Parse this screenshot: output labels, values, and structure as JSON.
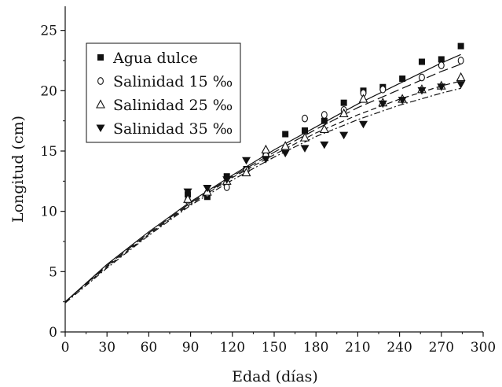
{
  "chart_data": {
    "type": "scatter",
    "title": "",
    "xlabel": "Edad (días)",
    "ylabel": "Longitud (cm)",
    "xlim": [
      0,
      300
    ],
    "ylim": [
      0,
      27
    ],
    "xticks": [
      0,
      30,
      60,
      90,
      120,
      150,
      180,
      210,
      240,
      270,
      300
    ],
    "yticks": [
      0,
      5,
      10,
      15,
      20,
      25
    ],
    "grid": false,
    "legend_position": "top-left",
    "series": [
      {
        "name": "Agua dulce",
        "marker": "filled-square",
        "line_style": "solid",
        "points": [
          [
            88,
            11.4
          ],
          [
            102,
            11.2
          ],
          [
            116,
            12.9
          ],
          [
            130,
            13.5
          ],
          [
            144,
            14.8
          ],
          [
            158,
            16.4
          ],
          [
            172,
            16.7
          ],
          [
            186,
            17.5
          ],
          [
            200,
            19.0
          ],
          [
            214,
            20.0
          ],
          [
            228,
            20.3
          ],
          [
            242,
            21.0
          ],
          [
            256,
            22.4
          ],
          [
            270,
            22.6
          ],
          [
            284,
            23.7
          ]
        ],
        "fit": [
          [
            0,
            2.5
          ],
          [
            30,
            5.6
          ],
          [
            60,
            8.3
          ],
          [
            90,
            10.8
          ],
          [
            120,
            13.0
          ],
          [
            150,
            15.1
          ],
          [
            180,
            17.0
          ],
          [
            210,
            18.9
          ],
          [
            240,
            20.6
          ],
          [
            270,
            22.3
          ],
          [
            284,
            23.0
          ]
        ]
      },
      {
        "name": "Salinidad 15 ‰",
        "marker": "open-circle",
        "line_style": "long-dash",
        "points": [
          [
            88,
            10.9
          ],
          [
            102,
            11.5
          ],
          [
            116,
            12.0
          ],
          [
            130,
            13.4
          ],
          [
            144,
            14.6
          ],
          [
            158,
            15.0
          ],
          [
            172,
            17.7
          ],
          [
            186,
            18.0
          ],
          [
            200,
            18.4
          ],
          [
            214,
            19.8
          ],
          [
            228,
            20.1
          ],
          [
            256,
            21.1
          ],
          [
            270,
            22.1
          ],
          [
            284,
            22.5
          ]
        ],
        "fit": [
          [
            0,
            2.5
          ],
          [
            30,
            5.5
          ],
          [
            60,
            8.2
          ],
          [
            90,
            10.7
          ],
          [
            120,
            12.9
          ],
          [
            150,
            14.9
          ],
          [
            180,
            16.8
          ],
          [
            210,
            18.6
          ],
          [
            240,
            20.1
          ],
          [
            270,
            21.6
          ],
          [
            284,
            22.2
          ]
        ]
      },
      {
        "name": "Salinidad 25 ‰",
        "marker": "open-triangle",
        "line_style": "dash",
        "points": [
          [
            88,
            11.0
          ],
          [
            102,
            11.6
          ],
          [
            116,
            12.5
          ],
          [
            130,
            13.2
          ],
          [
            144,
            15.1
          ],
          [
            158,
            15.4
          ],
          [
            172,
            16.1
          ],
          [
            186,
            16.8
          ],
          [
            200,
            18.1
          ],
          [
            214,
            19.3
          ],
          [
            228,
            19.0
          ],
          [
            242,
            19.3
          ],
          [
            256,
            20.1
          ],
          [
            270,
            20.4
          ],
          [
            284,
            21.1
          ]
        ],
        "fit": [
          [
            0,
            2.5
          ],
          [
            30,
            5.4
          ],
          [
            60,
            8.1
          ],
          [
            90,
            10.6
          ],
          [
            120,
            12.8
          ],
          [
            150,
            14.7
          ],
          [
            180,
            16.5
          ],
          [
            210,
            18.0
          ],
          [
            240,
            19.3
          ],
          [
            270,
            20.4
          ],
          [
            284,
            20.8
          ]
        ]
      },
      {
        "name": "Salinidad 35 ‰",
        "marker": "filled-down-triangle",
        "line_style": "dash-dot",
        "points": [
          [
            88,
            11.6
          ],
          [
            102,
            11.9
          ],
          [
            116,
            12.6
          ],
          [
            130,
            14.2
          ],
          [
            144,
            14.3
          ],
          [
            158,
            14.8
          ],
          [
            172,
            15.2
          ],
          [
            186,
            15.5
          ],
          [
            200,
            16.3
          ],
          [
            214,
            17.2
          ],
          [
            228,
            18.9
          ],
          [
            242,
            19.2
          ],
          [
            256,
            20.0
          ],
          [
            270,
            20.3
          ],
          [
            284,
            20.5
          ]
        ],
        "fit": [
          [
            0,
            2.4
          ],
          [
            30,
            5.3
          ],
          [
            60,
            8.0
          ],
          [
            90,
            10.5
          ],
          [
            120,
            12.6
          ],
          [
            150,
            14.5
          ],
          [
            180,
            16.2
          ],
          [
            210,
            17.6
          ],
          [
            240,
            18.8
          ],
          [
            270,
            19.8
          ],
          [
            284,
            20.2
          ]
        ]
      }
    ]
  }
}
